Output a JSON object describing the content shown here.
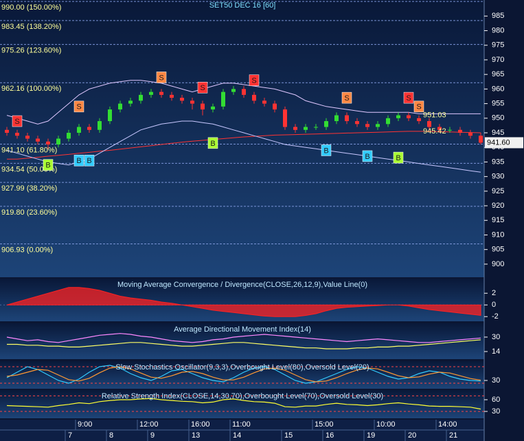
{
  "chart_data": [
    {
      "type": "candlestick",
      "title": "SET50 DEC 16  [60]",
      "ylim": [
        895.5,
        990.5
      ],
      "yticks": [
        985,
        980,
        975,
        970,
        965,
        960,
        955,
        950,
        945,
        940,
        935,
        930,
        925,
        920,
        915,
        910,
        905,
        900
      ],
      "categories": [
        null,
        null,
        null,
        null,
        null,
        null,
        null,
        "9:00",
        null,
        null,
        null,
        null,
        null,
        "12:00",
        null,
        null,
        null,
        null,
        "16:00",
        null,
        null,
        null,
        "11:00",
        null,
        null,
        null,
        null,
        null,
        null,
        null,
        "15:00",
        null,
        null,
        null,
        null,
        null,
        "10:00",
        null,
        null,
        null,
        null,
        null,
        "14:00",
        null,
        null,
        null,
        null
      ],
      "days": [
        null,
        null,
        null,
        null,
        null,
        null,
        "7",
        null,
        null,
        null,
        "8",
        null,
        null,
        null,
        "9",
        null,
        null,
        null,
        "13",
        null,
        null,
        null,
        "14",
        null,
        null,
        null,
        null,
        "15",
        null,
        null,
        null,
        "16",
        null,
        null,
        null,
        "19",
        null,
        null,
        null,
        "20",
        null,
        null,
        null,
        "21",
        null,
        null,
        null
      ],
      "ohlc": [
        [
          946,
          947,
          944,
          945
        ],
        [
          945,
          946,
          943,
          944
        ],
        [
          944,
          945,
          942,
          943
        ],
        [
          943,
          944,
          941,
          942
        ],
        [
          942,
          943,
          939.5,
          941
        ],
        [
          941,
          944,
          940,
          943
        ],
        [
          943,
          946,
          942,
          945
        ],
        [
          945,
          948,
          944,
          947
        ],
        [
          947,
          948,
          945,
          946
        ],
        [
          946,
          950,
          945,
          949
        ],
        [
          949,
          954,
          948,
          953
        ],
        [
          953,
          956,
          952,
          955
        ],
        [
          955,
          957,
          954,
          956
        ],
        [
          956,
          959,
          955,
          958
        ],
        [
          958,
          960,
          957,
          959
        ],
        [
          959,
          960,
          957,
          958
        ],
        [
          958,
          959,
          956,
          957
        ],
        [
          957,
          958,
          955,
          956
        ],
        [
          956,
          957,
          953,
          955
        ],
        [
          955,
          956,
          951,
          953
        ],
        [
          953,
          955,
          952,
          954
        ],
        [
          954,
          960,
          953,
          959
        ],
        [
          959,
          961,
          958,
          960
        ],
        [
          960,
          961,
          957,
          958
        ],
        [
          958,
          959,
          955,
          956
        ],
        [
          956,
          957,
          954,
          955
        ],
        [
          955,
          956,
          952,
          953
        ],
        [
          953,
          954,
          946,
          947
        ],
        [
          947,
          948,
          945,
          946
        ],
        [
          946,
          948,
          945,
          947
        ],
        [
          947,
          948,
          946,
          947
        ],
        [
          947,
          950,
          946,
          949
        ],
        [
          949,
          952,
          948,
          951
        ],
        [
          951,
          952,
          948,
          949
        ],
        [
          949,
          950,
          947,
          948
        ],
        [
          948,
          949,
          946,
          947
        ],
        [
          947,
          949,
          946,
          948
        ],
        [
          948,
          951,
          947,
          950
        ],
        [
          950,
          952,
          949,
          951
        ],
        [
          951,
          952,
          949,
          950
        ],
        [
          950,
          951,
          948,
          949
        ],
        [
          949,
          950,
          946,
          947
        ],
        [
          947,
          948,
          945,
          946
        ],
        [
          946,
          947,
          945,
          946
        ],
        [
          946,
          947,
          944,
          945
        ],
        [
          945,
          946,
          943,
          944
        ],
        [
          944,
          945,
          941,
          941.6
        ]
      ],
      "up_color": "#33dd33",
      "down_color": "#ff3333",
      "overlays": [
        {
          "color": "#ff3333",
          "values": [
            936,
            936,
            936.3,
            936.6,
            937,
            937.3,
            937.6,
            938,
            938.3,
            938.7,
            939,
            939.4,
            939.8,
            940.2,
            940.6,
            941,
            941.4,
            941.8,
            942.1,
            942.4,
            942.7,
            943,
            943.3,
            943.6,
            943.8,
            944,
            944.2,
            944.3,
            944.4,
            944.5,
            944.6,
            944.7,
            944.8,
            944.9,
            945,
            945.1,
            945.2,
            945.3,
            945.4,
            945.5,
            945.5,
            945.5,
            945.4,
            945.3,
            945.2,
            945.1,
            945
          ]
        },
        {
          "color": "#e0c8ff",
          "values": [
            951,
            950,
            949,
            948,
            949,
            952,
            955,
            958,
            960,
            961,
            962,
            962.5,
            963,
            963,
            962.5,
            962,
            961,
            960,
            959,
            960,
            961,
            962,
            962,
            961.5,
            961,
            960.5,
            960,
            959,
            958,
            956,
            955,
            954,
            953.5,
            953,
            952.5,
            952,
            952,
            952,
            952,
            952,
            951.5,
            951.5,
            951.5,
            951.5,
            951.5,
            951.5,
            951.5
          ]
        },
        {
          "color": "#c8c8ff",
          "values": [
            939,
            938,
            937,
            936,
            935,
            934.5,
            934,
            935,
            936,
            938,
            940,
            942,
            944,
            946,
            947,
            948,
            948.5,
            949,
            949,
            948.5,
            948,
            947,
            946,
            945,
            944,
            943,
            942,
            941,
            940.5,
            940,
            939.5,
            939,
            938.5,
            938,
            937.5,
            937,
            936.5,
            936,
            935.5,
            935,
            934.5,
            934,
            933.5,
            933,
            932.5,
            932,
            931.5
          ]
        }
      ],
      "levels": [
        {
          "value": 990,
          "label": "990.00 (150.00%)"
        },
        {
          "value": 983.45,
          "label": "983.45 (138.20%)"
        },
        {
          "value": 975.26,
          "label": "975.26 (123.60%)"
        },
        {
          "value": 962.16,
          "label": "962.16 (100.00%)"
        },
        {
          "value": 941.1,
          "label": "941.10 (61.80%)"
        },
        {
          "value": 934.54,
          "label": "934.54 (50.00%)"
        },
        {
          "value": 927.99,
          "label": "927.99 (38.20%)"
        },
        {
          "value": 919.8,
          "label": "919.80 (23.60%)"
        },
        {
          "value": 906.93,
          "label": "906.93 (0.00%)"
        }
      ],
      "signals": [
        {
          "label": "S",
          "index": 1,
          "value": 949,
          "color": "#ff3333"
        },
        {
          "label": "B",
          "index": 4,
          "value": 934,
          "color": "#aaff33"
        },
        {
          "label": "B",
          "index": 7,
          "value": 935.5,
          "color": "#33ccff"
        },
        {
          "label": "S",
          "index": 7,
          "value": 954,
          "color": "#ff8844"
        },
        {
          "label": "B",
          "index": 8,
          "value": 935.5,
          "color": "#33ccff"
        },
        {
          "label": "S",
          "index": 15,
          "value": 964,
          "color": "#ff8844"
        },
        {
          "label": "S",
          "index": 19,
          "value": 960.5,
          "color": "#ff3333"
        },
        {
          "label": "B",
          "index": 20,
          "value": 941.5,
          "color": "#aaff33"
        },
        {
          "label": "S",
          "index": 24,
          "value": 963,
          "color": "#ff3333"
        },
        {
          "label": "B",
          "index": 31,
          "value": 939,
          "color": "#33ccff"
        },
        {
          "label": "S",
          "index": 33,
          "value": 957,
          "color": "#ff8844"
        },
        {
          "label": "B",
          "index": 35,
          "value": 937,
          "color": "#33ccff"
        },
        {
          "label": "B",
          "index": 38,
          "value": 936.5,
          "color": "#aaff33"
        },
        {
          "label": "S",
          "index": 39,
          "value": 957,
          "color": "#ff3333"
        },
        {
          "label": "S",
          "index": 40,
          "value": 954,
          "color": "#ff8844"
        }
      ],
      "annotations": [
        {
          "value": 951.03,
          "label": "951.03",
          "index": 40
        },
        {
          "value": 945.42,
          "label": "945.42",
          "index": 40
        }
      ],
      "last_price": {
        "value": 941.6,
        "label": "941.60"
      }
    },
    {
      "type": "area",
      "title": "Moving Average Convergence / Divergence(CLOSE,26,12,9),Value Line(0)",
      "ylim": [
        -2.8,
        4.5
      ],
      "yticks": [
        2,
        0,
        -2
      ],
      "series": [
        {
          "color": "#ff2222",
          "values": [
            0,
            0.5,
            1,
            1.5,
            2,
            2.5,
            3,
            3,
            2.8,
            2.5,
            2,
            1.5,
            1.2,
            1,
            0.8,
            0.5,
            0.3,
            0,
            -0.3,
            -0.6,
            -0.9,
            -1.1,
            -1.3,
            -1.5,
            -1.7,
            -1.9,
            -2,
            -2,
            -2,
            -1.8,
            -1.5,
            -1,
            -0.6,
            -0.4,
            -0.3,
            -0.2,
            -0.1,
            0,
            0,
            -0.2,
            -0.5,
            -0.8,
            -1,
            -1.2,
            -1.4,
            -1.6,
            -1.8
          ]
        }
      ]
    },
    {
      "type": "line",
      "title": "Average Directional Movement Index(14)",
      "ylim": [
        5.6,
        45.2
      ],
      "yticks": [
        30,
        14
      ],
      "series": [
        {
          "color": "#ff88ff",
          "values": [
            30,
            28,
            26,
            27,
            25,
            24,
            26,
            28,
            30,
            32,
            33,
            34,
            33,
            31,
            30,
            28,
            26,
            25,
            24,
            25,
            27,
            28,
            30,
            31,
            32,
            33,
            32,
            31,
            30,
            29,
            28,
            27,
            26,
            25,
            26,
            27,
            28,
            27,
            26,
            25,
            24,
            24,
            25,
            26,
            27,
            28,
            29
          ]
        },
        {
          "color": "#ffff66",
          "values": [
            22,
            22,
            21,
            21,
            20,
            20,
            19,
            19,
            20,
            21,
            22,
            23,
            24,
            24,
            23,
            22,
            21,
            20,
            20,
            21,
            22,
            23,
            24,
            24,
            23,
            22,
            21,
            20,
            19,
            18,
            18,
            17,
            17,
            17,
            18,
            18,
            19,
            19,
            20,
            20,
            21,
            22,
            23,
            24,
            25,
            26,
            27
          ]
        }
      ]
    },
    {
      "type": "line",
      "title": "Slow Stochastics Oscillator(9,3,3),Overbought Level(80),Oversold Level(20)",
      "ylim": [
        0,
        100
      ],
      "yticks": [
        30
      ],
      "levels": [
        80,
        20
      ],
      "series": [
        {
          "color": "#33ccff",
          "values": [
            40,
            60,
            80,
            70,
            50,
            30,
            20,
            35,
            60,
            80,
            85,
            75,
            55,
            40,
            30,
            45,
            65,
            70,
            55,
            40,
            30,
            25,
            40,
            60,
            75,
            80,
            70,
            50,
            30,
            20,
            25,
            40,
            55,
            70,
            80,
            75,
            60,
            45,
            35,
            40,
            55,
            65,
            60,
            45,
            35,
            30,
            28
          ]
        },
        {
          "color": "#ff9933",
          "values": [
            45,
            50,
            60,
            70,
            67,
            50,
            33,
            28,
            38,
            58,
            75,
            80,
            72,
            57,
            42,
            38,
            47,
            60,
            63,
            55,
            42,
            32,
            32,
            42,
            58,
            72,
            75,
            67,
            50,
            33,
            25,
            28,
            40,
            55,
            68,
            75,
            72,
            60,
            47,
            40,
            43,
            53,
            60,
            57,
            47,
            37,
            31
          ]
        }
      ]
    },
    {
      "type": "line",
      "title": "Relative Strength Index(CLOSE,14,30,70),Overbought Level(70),Oversold Level(30)",
      "ylim": [
        12.4,
        84.7
      ],
      "yticks": [
        60,
        30
      ],
      "levels": [
        70,
        30
      ],
      "series": [
        {
          "color": "#ffff33",
          "values": [
            45,
            44,
            43,
            42,
            41,
            45,
            48,
            52,
            50,
            55,
            58,
            60,
            60,
            62,
            63,
            60,
            58,
            56,
            55,
            52,
            54,
            60,
            62,
            58,
            55,
            54,
            51,
            42,
            41,
            44,
            44,
            48,
            51,
            48,
            47,
            45,
            47,
            50,
            52,
            49,
            47,
            44,
            43,
            43,
            42,
            41,
            36
          ]
        }
      ]
    }
  ]
}
